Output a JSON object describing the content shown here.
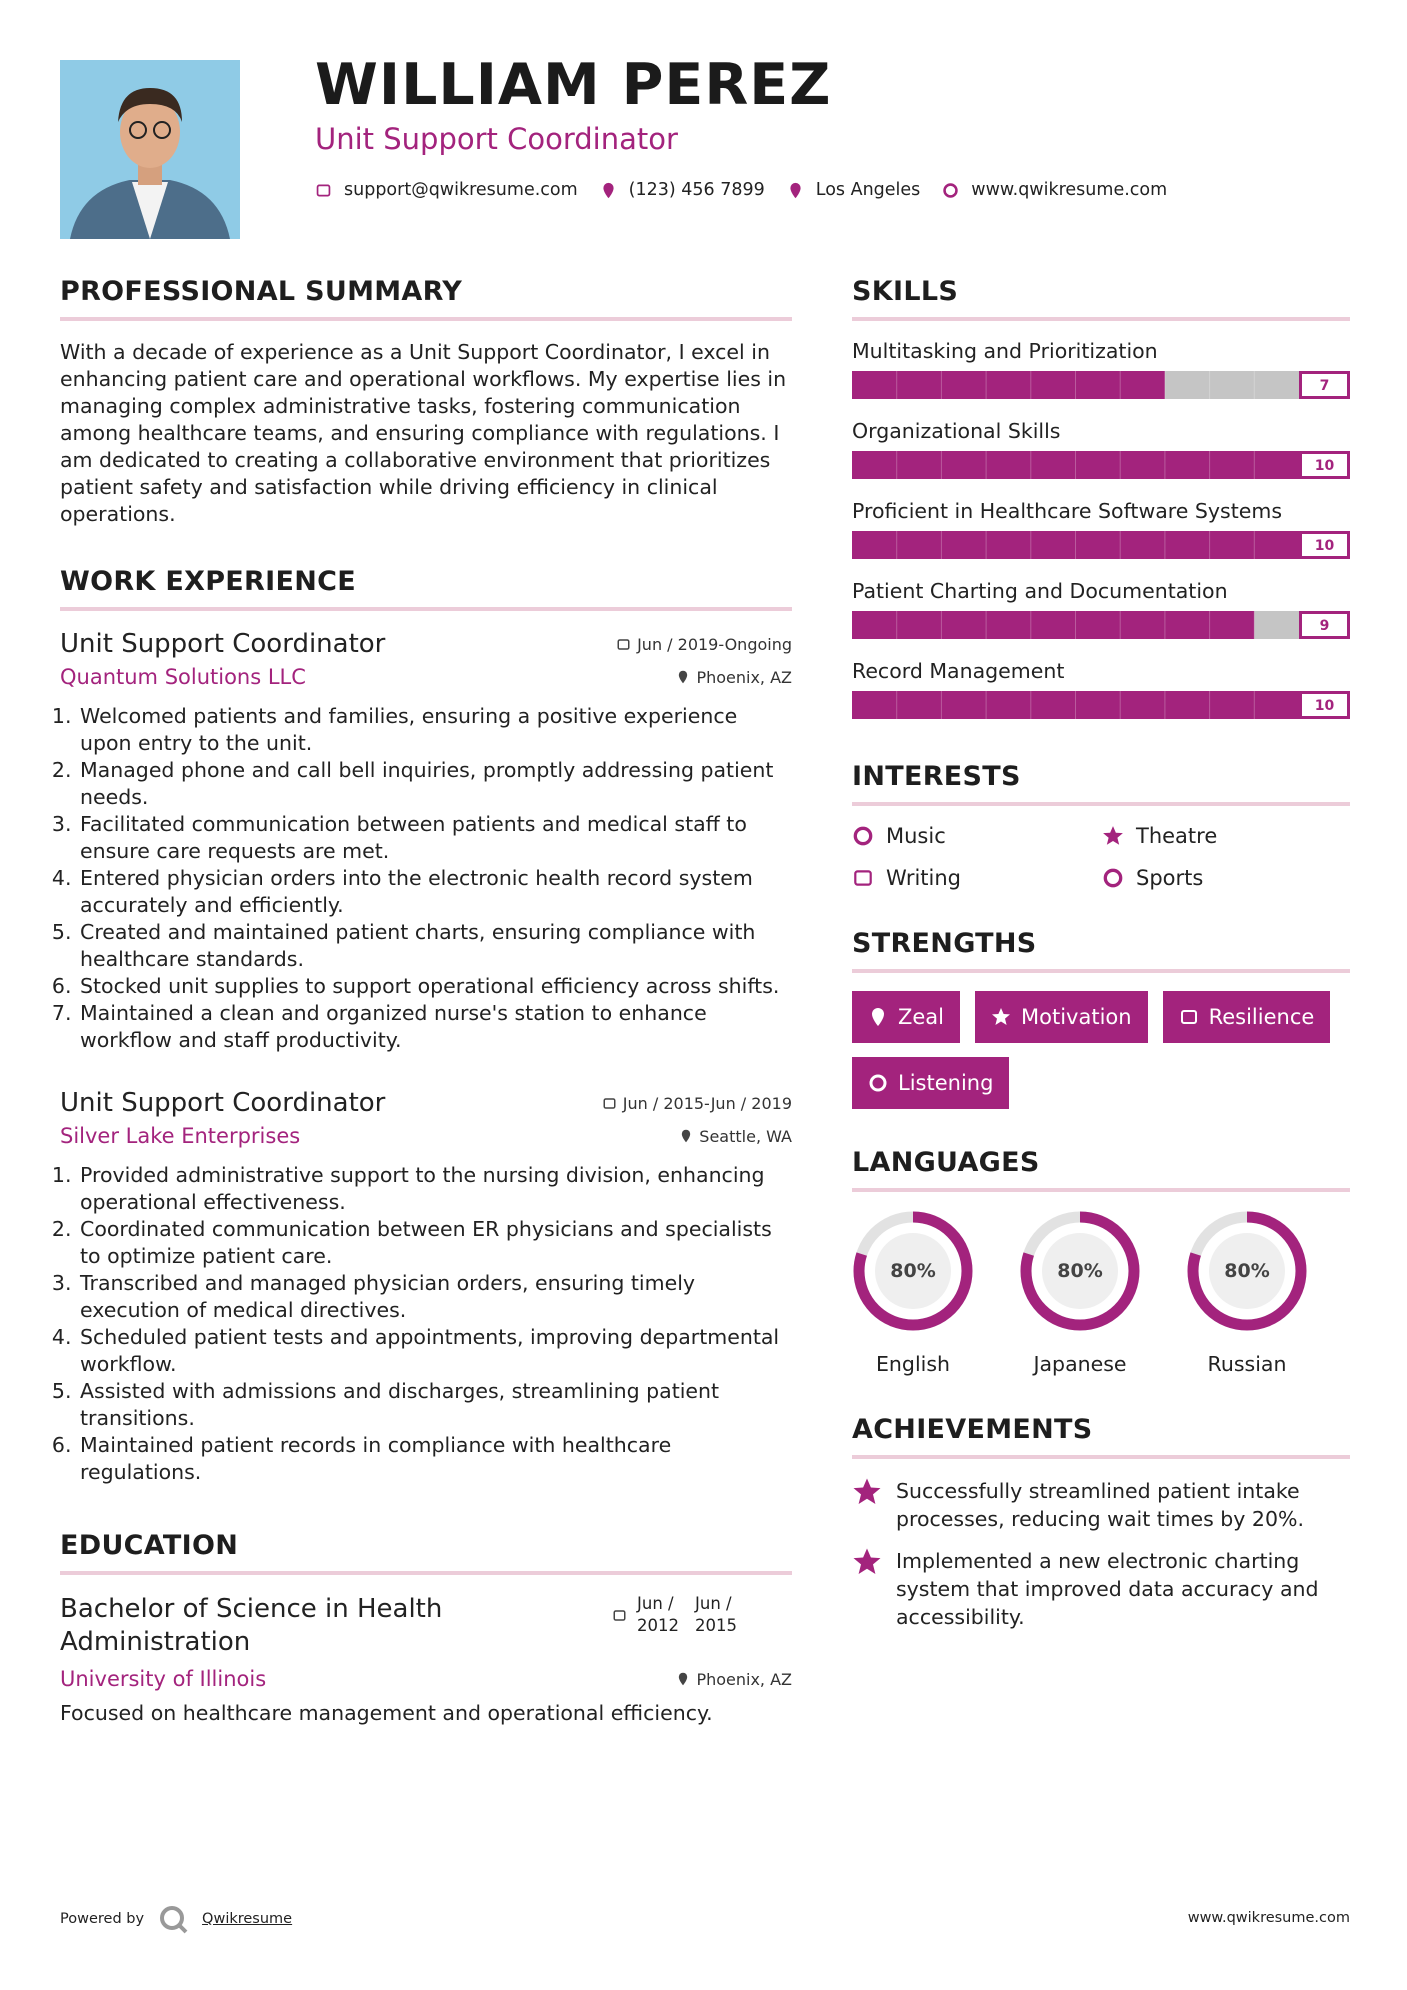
{
  "header": {
    "name": "WILLIAM PEREZ",
    "title": "Unit Support Coordinator",
    "contacts": {
      "email": "support@qwikresume.com",
      "phone": "(123) 456 7899",
      "location": "Los Angeles",
      "website": "www.qwikresume.com"
    }
  },
  "summary": {
    "heading": "PROFESSIONAL SUMMARY",
    "text": "With a decade of experience as a Unit Support Coordinator, I excel in enhancing patient care and operational workflows. My expertise lies in managing complex administrative tasks, fostering communication among healthcare teams, and ensuring compliance with regulations. I am dedicated to creating a collaborative environment that prioritizes patient safety and satisfaction while driving efficiency in clinical operations."
  },
  "experience": {
    "heading": "WORK EXPERIENCE",
    "jobs": [
      {
        "title": "Unit Support Coordinator",
        "date": "Jun / 2019-Ongoing",
        "company": "Quantum Solutions LLC",
        "location": "Phoenix, AZ",
        "items": [
          "Welcomed patients and families, ensuring a positive experience upon entry to the unit.",
          "Managed phone and call bell inquiries, promptly addressing patient needs.",
          "Facilitated communication between patients and medical staff to ensure care requests are met.",
          "Entered physician orders into the electronic health record system accurately and efficiently.",
          "Created and maintained patient charts, ensuring compliance with healthcare standards.",
          "Stocked unit supplies to support operational efficiency across shifts.",
          "Maintained a clean and organized nurse's station to enhance workflow and staff productivity."
        ]
      },
      {
        "title": "Unit Support Coordinator",
        "date": "Jun / 2015-Jun / 2019",
        "company": "Silver Lake Enterprises",
        "location": "Seattle, WA",
        "items": [
          "Provided administrative support to the nursing division, enhancing operational effectiveness.",
          "Coordinated communication between ER physicians and specialists to optimize patient care.",
          "Transcribed and managed physician orders, ensuring timely execution of medical directives.",
          "Scheduled patient tests and appointments, improving departmental workflow.",
          "Assisted with admissions and discharges, streamlining patient transitions.",
          "Maintained patient records in compliance with healthcare regulations."
        ]
      }
    ]
  },
  "education": {
    "heading": "EDUCATION",
    "items": [
      {
        "degree": "Bachelor of Science in Health Administration",
        "start": "Jun / 2012",
        "end": "Jun / 2015",
        "school": "University of Illinois",
        "location": "Phoenix, AZ",
        "description": "Focused on healthcare management and operational efficiency."
      }
    ]
  },
  "skills": {
    "heading": "SKILLS",
    "xlim": [
      0,
      10
    ],
    "items": [
      {
        "name": "Multitasking and Prioritization",
        "level": 7
      },
      {
        "name": "Organizational Skills",
        "level": 10
      },
      {
        "name": "Proficient in Healthcare Software Systems",
        "level": 10
      },
      {
        "name": "Patient Charting and Documentation",
        "level": 9
      },
      {
        "name": "Record Management",
        "level": 10
      }
    ]
  },
  "interests": {
    "heading": "INTERESTS",
    "items": [
      "Music",
      "Theatre",
      "Writing",
      "Sports"
    ]
  },
  "strengths": {
    "heading": "STRENGTHS",
    "items": [
      "Zeal",
      "Motivation",
      "Resilience",
      "Listening"
    ]
  },
  "languages": {
    "heading": "LANGUAGES",
    "lim": [
      0,
      100
    ],
    "items": [
      {
        "name": "English",
        "level": 80,
        "level_label": "80%"
      },
      {
        "name": "Japanese",
        "level": 80,
        "level_label": "80%"
      },
      {
        "name": "Russian",
        "level": 80,
        "level_label": "80%"
      }
    ]
  },
  "achievements": {
    "heading": "ACHIEVEMENTS",
    "items": [
      "Successfully streamlined patient intake processes, reducing wait times by 20%.",
      "Implemented a new electronic charting system that improved data accuracy and accessibility."
    ]
  },
  "footer": {
    "powered_by": "Powered by",
    "brand": "Qwikresume",
    "website": "www.qwikresume.com"
  }
}
